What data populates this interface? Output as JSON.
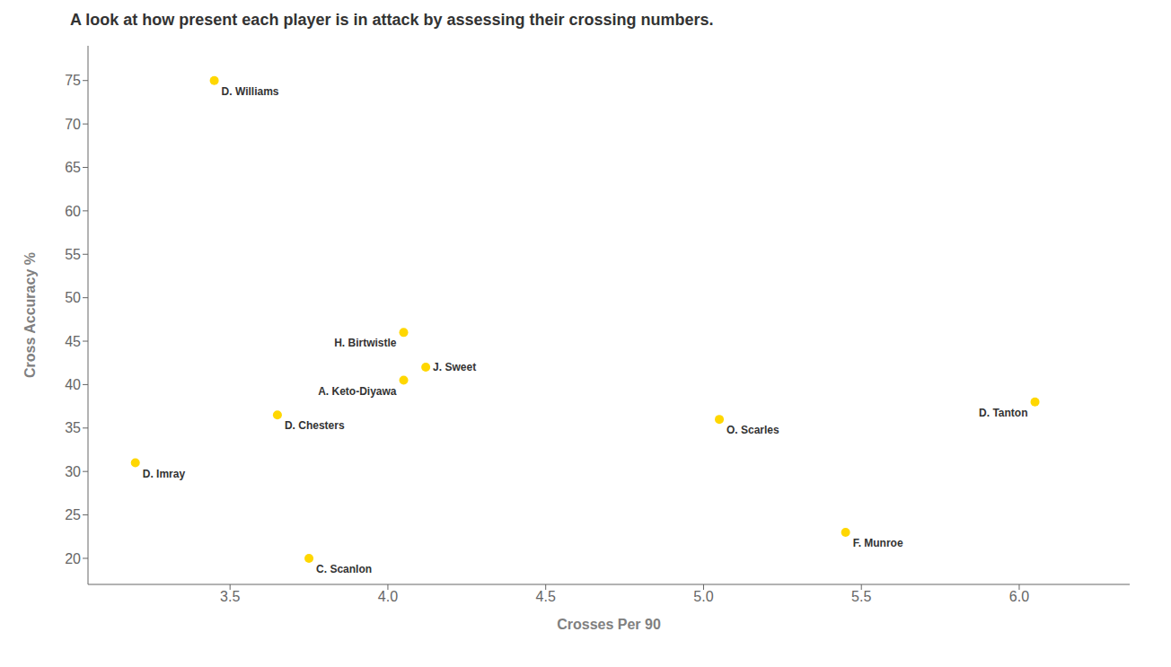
{
  "chart_data": {
    "type": "scatter",
    "title": "A look at how present each player is in attack by assessing their crossing numbers.",
    "x_label": "Crosses Per 90",
    "y_label": "Cross Accuracy %",
    "labels": [
      "D. Williams",
      "D. Imray",
      "D. Chesters",
      "C. Scanlon",
      "H. Birtwistle",
      "J. Sweet",
      "A. Keto-Diyawa",
      "O. Scarles",
      "F. Munroe",
      "D. Tanton"
    ],
    "x": [
      3.45,
      3.2,
      3.65,
      3.75,
      4.05,
      4.12,
      4.05,
      5.05,
      5.45,
      6.05
    ],
    "values": [
      75,
      31,
      36.5,
      20,
      46,
      42,
      40.5,
      36,
      23,
      38
    ],
    "color": "#FFD700",
    "xlim": [
      3.05,
      6.35
    ],
    "ylim": [
      17,
      79
    ],
    "xticks": [
      3.5,
      {
        "value": 4.0,
        "label": "4.0"
      },
      4.5,
      {
        "value": 5.0,
        "label": "5.0"
      },
      5.5,
      {
        "value": 6.0,
        "label": "6.0"
      }
    ],
    "yticks": [
      20,
      25,
      30,
      35,
      40,
      45,
      50,
      55,
      60,
      65,
      70,
      75
    ],
    "grid": false
  }
}
